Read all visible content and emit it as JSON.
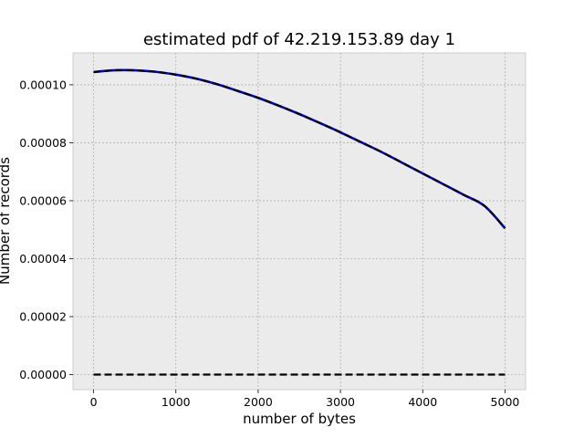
{
  "chart_data": {
    "type": "line",
    "title": "estimated pdf of 42.219.153.89 day 1",
    "xlabel": "number of bytes",
    "ylabel": "Number of records",
    "xlim": [
      -250,
      5250
    ],
    "ylim": [
      -5.2e-06,
      0.000111
    ],
    "x_ticks": [
      0,
      1000,
      2000,
      3000,
      4000,
      5000
    ],
    "x_tick_labels": [
      "0",
      "1000",
      "2000",
      "3000",
      "4000",
      "5000"
    ],
    "y_ticks": [
      0,
      2e-05,
      4e-05,
      6e-05,
      8e-05,
      0.0001
    ],
    "y_tick_labels": [
      "0.00000",
      "0.00002",
      "0.00004",
      "0.00006",
      "0.00008",
      "0.00010"
    ],
    "grid": true,
    "background": "#ebebeb",
    "series": [
      {
        "color": "#0000cc",
        "style": "solid",
        "x": [
          0,
          250,
          500,
          750,
          1000,
          1250,
          1500,
          1750,
          2000,
          2250,
          2500,
          2750,
          3000,
          3250,
          3500,
          3750,
          4000,
          4250,
          4500,
          4750,
          5000
        ],
        "y": [
          0.0001044,
          0.000105,
          0.000105,
          0.0001045,
          0.0001035,
          0.0001021,
          0.0001002,
          9.79e-05,
          9.55e-05,
          9.28e-05,
          8.99e-05,
          8.68e-05,
          8.36e-05,
          8.02e-05,
          7.68e-05,
          7.31e-05,
          6.94e-05,
          6.57e-05,
          6.2e-05,
          5.82e-05,
          5.05e-05
        ]
      },
      {
        "color": "#000000",
        "style": "dashed",
        "x": [
          0,
          250,
          500,
          750,
          1000,
          1250,
          1500,
          1750,
          2000,
          2250,
          2500,
          2750,
          3000,
          3250,
          3500,
          3750,
          4000,
          4250,
          4500,
          4750,
          5000
        ],
        "y": [
          0.0001044,
          0.000105,
          0.000105,
          0.0001045,
          0.0001035,
          0.0001021,
          0.0001002,
          9.79e-05,
          9.55e-05,
          9.28e-05,
          8.99e-05,
          8.68e-05,
          8.36e-05,
          8.02e-05,
          7.68e-05,
          7.31e-05,
          6.94e-05,
          6.57e-05,
          6.2e-05,
          5.82e-05,
          5.05e-05
        ]
      },
      {
        "color": "#000000",
        "style": "dashed",
        "x": [
          0,
          5000
        ],
        "y": [
          0,
          0
        ]
      }
    ]
  }
}
